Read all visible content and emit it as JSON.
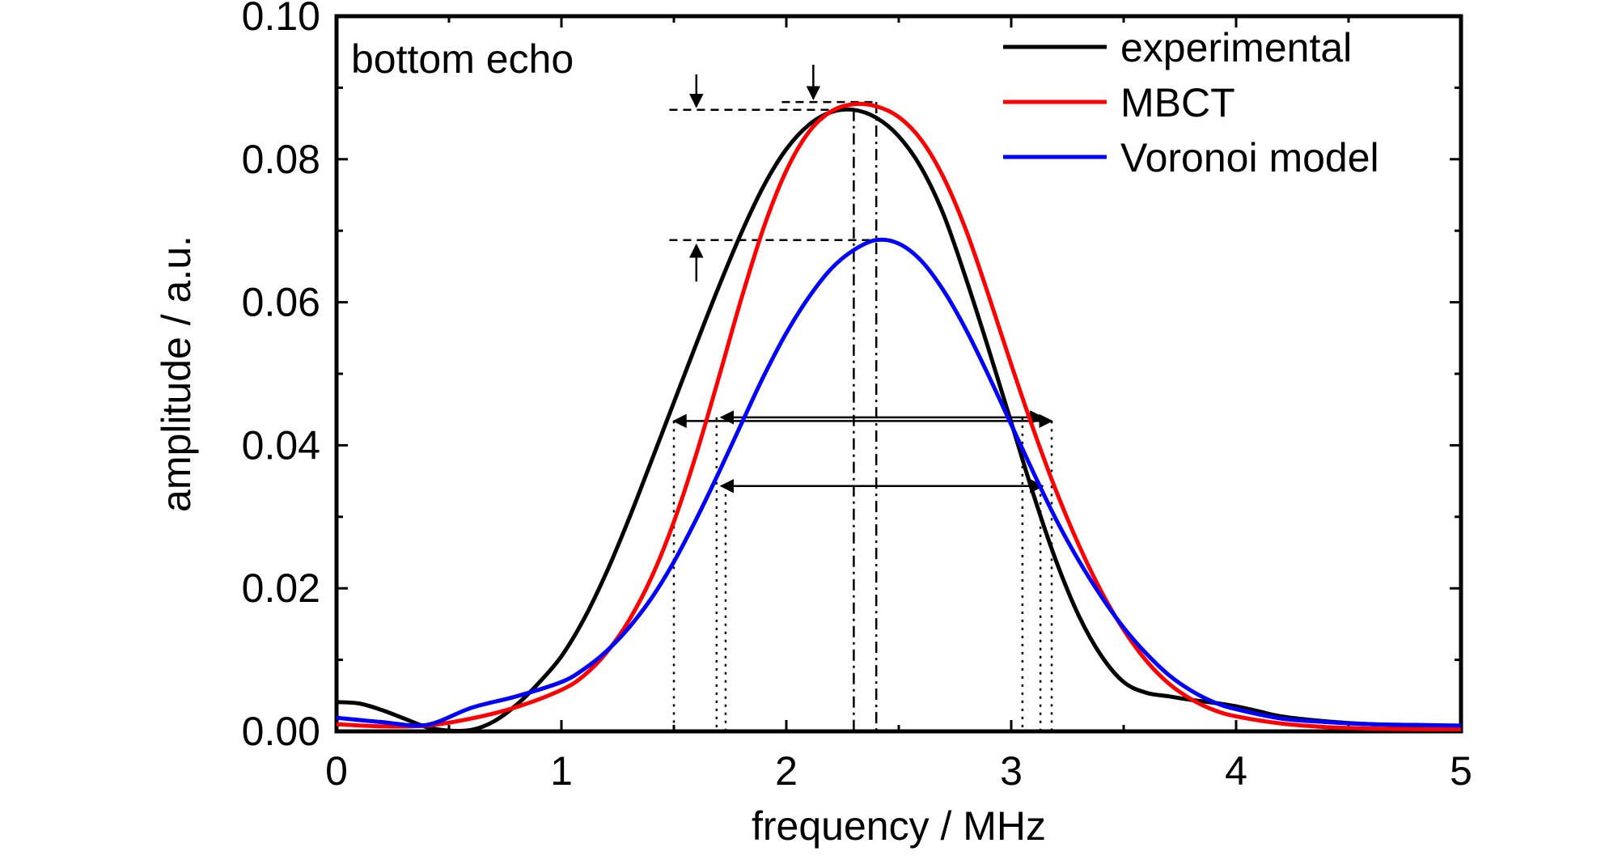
{
  "chart_data": {
    "type": "line",
    "title": "",
    "annotation": "bottom echo",
    "xlabel": "frequency / MHz",
    "ylabel": "amplitude / a.u.",
    "xlim": [
      0,
      5
    ],
    "ylim": [
      0,
      0.1
    ],
    "x_ticks": [
      "0",
      "1",
      "2",
      "3",
      "4",
      "5"
    ],
    "y_ticks": [
      "0.00",
      "0.02",
      "0.04",
      "0.06",
      "0.08",
      "0.10"
    ],
    "grid": false,
    "legend_position": "top-right",
    "series": [
      {
        "name": "experimental",
        "color": "#000000",
        "x": [
          0,
          0.1,
          0.2,
          0.3,
          0.4,
          0.5,
          0.6,
          0.7,
          0.8,
          0.9,
          1.0,
          1.1,
          1.2,
          1.3,
          1.4,
          1.5,
          1.6,
          1.7,
          1.8,
          1.9,
          2.0,
          2.1,
          2.2,
          2.3,
          2.4,
          2.5,
          2.6,
          2.7,
          2.8,
          2.9,
          3.0,
          3.1,
          3.2,
          3.3,
          3.4,
          3.5,
          3.6,
          3.7,
          3.8,
          3.9,
          4.0,
          4.1,
          4.2,
          4.4,
          4.6,
          4.8,
          5.0
        ],
        "y": [
          0.0041,
          0.0039,
          0.003,
          0.0018,
          0.0006,
          0.0001,
          0.0002,
          0.0014,
          0.0037,
          0.0068,
          0.0105,
          0.0157,
          0.0222,
          0.0297,
          0.0378,
          0.046,
          0.0542,
          0.0622,
          0.0697,
          0.0763,
          0.0814,
          0.0848,
          0.0866,
          0.0869,
          0.0858,
          0.0832,
          0.0788,
          0.0722,
          0.0632,
          0.0534,
          0.0432,
          0.033,
          0.0238,
          0.0162,
          0.0106,
          0.0069,
          0.0054,
          0.0049,
          0.0044,
          0.004,
          0.0035,
          0.0028,
          0.0021,
          0.0014,
          0.001,
          0.0008,
          0.0007
        ]
      },
      {
        "name": "MBCT",
        "color": "#ff0000",
        "x": [
          0,
          0.2,
          0.4,
          0.6,
          0.8,
          1.0,
          1.1,
          1.2,
          1.3,
          1.4,
          1.5,
          1.6,
          1.7,
          1.8,
          1.9,
          2.0,
          2.1,
          2.2,
          2.3,
          2.4,
          2.5,
          2.6,
          2.7,
          2.8,
          2.9,
          3.0,
          3.1,
          3.2,
          3.3,
          3.4,
          3.5,
          3.6,
          3.7,
          3.8,
          3.9,
          4.0,
          4.2,
          4.4,
          4.6,
          4.8,
          5.0
        ],
        "y": [
          0.001,
          0.0007,
          0.0008,
          0.0018,
          0.0034,
          0.0058,
          0.0078,
          0.011,
          0.0155,
          0.0215,
          0.0293,
          0.0388,
          0.0495,
          0.0605,
          0.0705,
          0.0784,
          0.0838,
          0.0867,
          0.0877,
          0.0874,
          0.0859,
          0.0827,
          0.0774,
          0.07,
          0.0609,
          0.0513,
          0.0421,
          0.0336,
          0.0261,
          0.0196,
          0.0142,
          0.0099,
          0.0067,
          0.0045,
          0.003,
          0.0021,
          0.0011,
          0.0006,
          0.0004,
          0.0003,
          0.0003
        ]
      },
      {
        "name": "Voronoi model",
        "color": "#0000ff",
        "x": [
          0,
          0.2,
          0.4,
          0.6,
          0.8,
          1.0,
          1.1,
          1.2,
          1.3,
          1.4,
          1.5,
          1.6,
          1.7,
          1.8,
          1.9,
          2.0,
          2.1,
          2.2,
          2.3,
          2.4,
          2.5,
          2.6,
          2.7,
          2.8,
          2.9,
          3.0,
          3.1,
          3.2,
          3.3,
          3.4,
          3.5,
          3.6,
          3.7,
          3.8,
          3.9,
          4.0,
          4.2,
          4.4,
          4.6,
          4.8,
          5.0
        ],
        "y": [
          0.0019,
          0.0013,
          0.0009,
          0.0033,
          0.0049,
          0.0069,
          0.0087,
          0.0112,
          0.0145,
          0.0186,
          0.0237,
          0.0297,
          0.0362,
          0.043,
          0.0497,
          0.0557,
          0.0607,
          0.0647,
          0.0673,
          0.0687,
          0.0682,
          0.0658,
          0.0616,
          0.0561,
          0.0497,
          0.0429,
          0.0361,
          0.0296,
          0.0239,
          0.0189,
          0.0145,
          0.0109,
          0.0079,
          0.0057,
          0.0041,
          0.0031,
          0.0018,
          0.0013,
          0.001,
          0.0009,
          0.0008
        ]
      }
    ]
  }
}
